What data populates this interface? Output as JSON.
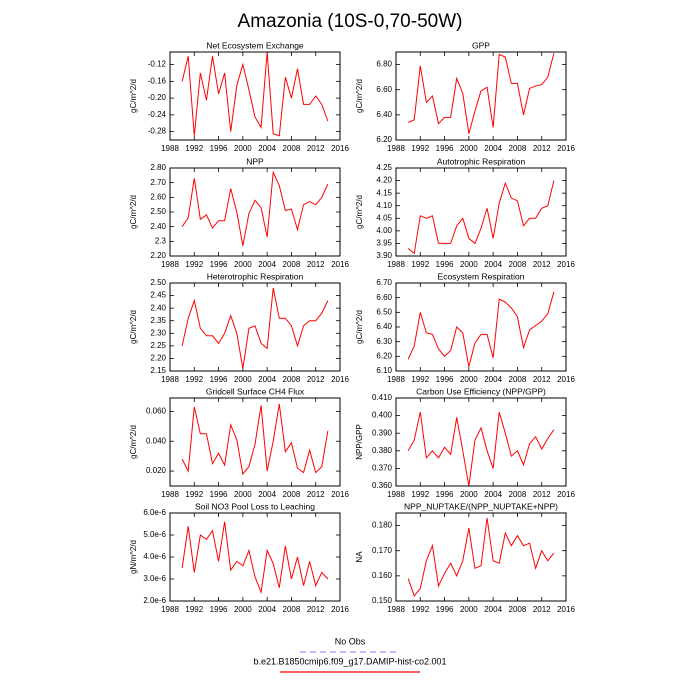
{
  "title": "Amazonia (10S-0,70-50W)",
  "legend": [
    {
      "name": "No Obs",
      "color": "#9999ff",
      "dash": true
    },
    {
      "name": "b.e21.B1850cmip6.f09_g17.DAMIP-hist-co2.001",
      "color": "#ff0000",
      "dash": false
    }
  ],
  "chart_data": [
    {
      "type": "line",
      "title": "Net Ecosystem Exchange",
      "ylabel": "gC/m^2/d",
      "color": "#ff0000",
      "x": [
        1990,
        1991,
        1992,
        1993,
        1994,
        1995,
        1996,
        1997,
        1998,
        1999,
        2000,
        2001,
        2002,
        2003,
        2004,
        2005,
        2006,
        2007,
        2008,
        2009,
        2010,
        2011,
        2012,
        2013,
        2014
      ],
      "values": [
        -0.16,
        -0.1,
        -0.29,
        -0.14,
        -0.205,
        -0.1,
        -0.19,
        -0.14,
        -0.28,
        -0.17,
        -0.12,
        -0.18,
        -0.245,
        -0.27,
        -0.09,
        -0.285,
        -0.29,
        -0.15,
        -0.2,
        -0.13,
        -0.215,
        -0.215,
        -0.195,
        -0.215,
        -0.255
      ],
      "xlim": [
        1988,
        2016
      ],
      "xticks": [
        1988,
        1992,
        1996,
        2000,
        2004,
        2008,
        2012,
        2016
      ],
      "ylim": [
        -0.3,
        -0.09
      ],
      "yticks": [
        -0.12,
        -0.16,
        {
          "value": -0.2,
          "label": "-0.20"
        },
        -0.24,
        -0.28
      ]
    },
    {
      "type": "line",
      "title": "GPP",
      "ylabel": "gC/m^2/d",
      "color": "#ff0000",
      "x": [
        1990,
        1991,
        1992,
        1993,
        1994,
        1995,
        1996,
        1997,
        1998,
        1999,
        2000,
        2001,
        2002,
        2003,
        2004,
        2005,
        2006,
        2007,
        2008,
        2009,
        2010,
        2011,
        2012,
        2013,
        2014
      ],
      "values": [
        6.34,
        6.36,
        6.79,
        6.5,
        6.55,
        6.33,
        6.38,
        6.38,
        6.69,
        6.57,
        6.25,
        6.43,
        6.59,
        6.62,
        6.3,
        6.88,
        6.86,
        6.65,
        6.65,
        6.4,
        6.61,
        6.63,
        6.64,
        6.7,
        6.89
      ],
      "xlim": [
        1988,
        2016
      ],
      "xticks": [
        1988,
        1992,
        1996,
        2000,
        2004,
        2008,
        2012,
        2016
      ],
      "ylim": [
        6.2,
        6.9
      ],
      "yticks": [
        {
          "value": 6.2,
          "label": "6.20"
        },
        {
          "value": 6.4,
          "label": "6.40"
        },
        {
          "value": 6.6,
          "label": "6.60"
        },
        {
          "value": 6.8,
          "label": "6.80"
        }
      ]
    },
    {
      "type": "line",
      "title": "NPP",
      "ylabel": "gC/m^2/d",
      "color": "#ff0000",
      "x": [
        1990,
        1991,
        1992,
        1993,
        1994,
        1995,
        1996,
        1997,
        1998,
        1999,
        2000,
        2001,
        2002,
        2003,
        2004,
        2005,
        2006,
        2007,
        2008,
        2009,
        2010,
        2011,
        2012,
        2013,
        2014
      ],
      "values": [
        2.4,
        2.46,
        2.73,
        2.45,
        2.48,
        2.39,
        2.44,
        2.44,
        2.66,
        2.5,
        2.27,
        2.49,
        2.58,
        2.53,
        2.33,
        2.77,
        2.68,
        2.51,
        2.52,
        2.38,
        2.55,
        2.57,
        2.55,
        2.6,
        2.69
      ],
      "xlim": [
        1988,
        2016
      ],
      "xticks": [
        1988,
        1992,
        1996,
        2000,
        2004,
        2008,
        2012,
        2016
      ],
      "ylim": [
        2.2,
        2.8
      ],
      "yticks": [
        {
          "value": 2.2,
          "label": "2.20"
        },
        2.3,
        {
          "value": 2.4,
          "label": "2.40"
        },
        {
          "value": 2.5,
          "label": "2.50"
        },
        {
          "value": 2.6,
          "label": "2.60"
        },
        {
          "value": 2.7,
          "label": "2.70"
        },
        {
          "value": 2.8,
          "label": "2.80"
        }
      ]
    },
    {
      "type": "line",
      "title": "Autotrophic Respiration",
      "ylabel": "gC/m^2/d",
      "color": "#ff0000",
      "x": [
        1990,
        1991,
        1992,
        1993,
        1994,
        1995,
        1996,
        1997,
        1998,
        1999,
        2000,
        2001,
        2002,
        2003,
        2004,
        2005,
        2006,
        2007,
        2008,
        2009,
        2010,
        2011,
        2012,
        2013,
        2014
      ],
      "values": [
        3.93,
        3.91,
        4.06,
        4.05,
        4.06,
        3.95,
        3.95,
        3.95,
        4.02,
        4.05,
        3.97,
        3.95,
        4.01,
        4.09,
        3.97,
        4.11,
        4.19,
        4.13,
        4.12,
        4.02,
        4.05,
        4.05,
        4.09,
        4.1,
        4.2
      ],
      "xlim": [
        1988,
        2016
      ],
      "xticks": [
        1988,
        1992,
        1996,
        2000,
        2004,
        2008,
        2012,
        2016
      ],
      "ylim": [
        3.9,
        4.25
      ],
      "yticks": [
        {
          "value": 3.9,
          "label": "3.90"
        },
        3.95,
        {
          "value": 4.0,
          "label": "4.00"
        },
        4.05,
        {
          "value": 4.1,
          "label": "4.10"
        },
        4.15,
        {
          "value": 4.2,
          "label": "4.20"
        },
        4.25
      ]
    },
    {
      "type": "line",
      "title": "Heterotrophic Respiration",
      "ylabel": "gC/m^2/d",
      "color": "#ff0000",
      "x": [
        1990,
        1991,
        1992,
        1993,
        1994,
        1995,
        1996,
        1997,
        1998,
        1999,
        2000,
        2001,
        2002,
        2003,
        2004,
        2005,
        2006,
        2007,
        2008,
        2009,
        2010,
        2011,
        2012,
        2013,
        2014
      ],
      "values": [
        2.25,
        2.36,
        2.43,
        2.32,
        2.29,
        2.29,
        2.26,
        2.3,
        2.37,
        2.3,
        2.16,
        2.32,
        2.33,
        2.26,
        2.24,
        2.48,
        2.36,
        2.36,
        2.33,
        2.25,
        2.33,
        2.35,
        2.35,
        2.38,
        2.43
      ],
      "xlim": [
        1988,
        2016
      ],
      "xticks": [
        1988,
        1992,
        1996,
        2000,
        2004,
        2008,
        2012,
        2016
      ],
      "ylim": [
        2.15,
        2.5
      ],
      "yticks": [
        2.15,
        {
          "value": 2.2,
          "label": "2.20"
        },
        2.25,
        {
          "value": 2.3,
          "label": "2.30"
        },
        2.35,
        {
          "value": 2.4,
          "label": "2.40"
        },
        2.45,
        {
          "value": 2.5,
          "label": "2.50"
        }
      ]
    },
    {
      "type": "line",
      "title": "Ecosystem Respiration",
      "ylabel": "gC/m^2/d",
      "color": "#ff0000",
      "x": [
        1990,
        1991,
        1992,
        1993,
        1994,
        1995,
        1996,
        1997,
        1998,
        1999,
        2000,
        2001,
        2002,
        2003,
        2004,
        2005,
        2006,
        2007,
        2008,
        2009,
        2010,
        2011,
        2012,
        2013,
        2014
      ],
      "values": [
        6.18,
        6.27,
        6.5,
        6.36,
        6.35,
        6.25,
        6.2,
        6.24,
        6.4,
        6.36,
        6.13,
        6.29,
        6.35,
        6.35,
        6.19,
        6.59,
        6.57,
        6.53,
        6.47,
        6.26,
        6.38,
        6.41,
        6.44,
        6.49,
        6.64
      ],
      "xlim": [
        1988,
        2016
      ],
      "xticks": [
        1988,
        1992,
        1996,
        2000,
        2004,
        2008,
        2012,
        2016
      ],
      "ylim": [
        6.1,
        6.7
      ],
      "yticks": [
        {
          "value": 6.1,
          "label": "6.10"
        },
        {
          "value": 6.2,
          "label": "6.20"
        },
        {
          "value": 6.3,
          "label": "6.30"
        },
        {
          "value": 6.4,
          "label": "6.40"
        },
        {
          "value": 6.5,
          "label": "6.50"
        },
        {
          "value": 6.6,
          "label": "6.60"
        },
        {
          "value": 6.7,
          "label": "6.70"
        }
      ]
    },
    {
      "type": "line",
      "title": "Gridcell Surface CH4 Flux",
      "ylabel": "gC/m^2/d",
      "color": "#ff0000",
      "x": [
        1990,
        1991,
        1992,
        1993,
        1994,
        1995,
        1996,
        1997,
        1998,
        1999,
        2000,
        2001,
        2002,
        2003,
        2004,
        2005,
        2006,
        2007,
        2008,
        2009,
        2010,
        2011,
        2012,
        2013,
        2014
      ],
      "values": [
        0.028,
        0.02,
        0.063,
        0.045,
        0.045,
        0.025,
        0.032,
        0.024,
        0.051,
        0.041,
        0.018,
        0.023,
        0.038,
        0.064,
        0.02,
        0.04,
        0.065,
        0.033,
        0.039,
        0.022,
        0.019,
        0.034,
        0.019,
        0.023,
        0.047
      ],
      "xlim": [
        1988,
        2016
      ],
      "xticks": [
        1988,
        1992,
        1996,
        2000,
        2004,
        2008,
        2012,
        2016
      ],
      "ylim": [
        0.01,
        0.069
      ],
      "yticks": [
        {
          "value": 0.02,
          "label": "0.020"
        },
        {
          "value": 0.04,
          "label": "0.040"
        },
        {
          "value": 0.06,
          "label": "0.060"
        }
      ]
    },
    {
      "type": "line",
      "title": "Carbon Use Efficiency (NPP/GPP)",
      "ylabel": "NPP/GPP",
      "color": "#ff0000",
      "x": [
        1990,
        1991,
        1992,
        1993,
        1994,
        1995,
        1996,
        1997,
        1998,
        1999,
        2000,
        2001,
        2002,
        2003,
        2004,
        2005,
        2006,
        2007,
        2008,
        2009,
        2010,
        2011,
        2012,
        2013,
        2014
      ],
      "values": [
        0.38,
        0.386,
        0.402,
        0.376,
        0.38,
        0.376,
        0.382,
        0.378,
        0.399,
        0.38,
        0.36,
        0.386,
        0.393,
        0.38,
        0.37,
        0.402,
        0.39,
        0.377,
        0.38,
        0.372,
        0.384,
        0.388,
        0.381,
        0.387,
        0.392
      ],
      "xlim": [
        1988,
        2016
      ],
      "xticks": [
        1988,
        1992,
        1996,
        2000,
        2004,
        2008,
        2012,
        2016
      ],
      "ylim": [
        0.36,
        0.41
      ],
      "yticks": [
        {
          "value": 0.36,
          "label": "0.360"
        },
        {
          "value": 0.37,
          "label": "0.370"
        },
        {
          "value": 0.38,
          "label": "0.380"
        },
        {
          "value": 0.39,
          "label": "0.390"
        },
        {
          "value": 0.4,
          "label": "0.400"
        },
        {
          "value": 0.41,
          "label": "0.410"
        }
      ]
    },
    {
      "type": "line",
      "title": "Soil NO3 Pool Loss to Leaching",
      "ylabel": "gN/m^2/d",
      "color": "#ff0000",
      "x": [
        1990,
        1991,
        1992,
        1993,
        1994,
        1995,
        1996,
        1997,
        1998,
        1999,
        2000,
        2001,
        2002,
        2003,
        2004,
        2005,
        2006,
        2007,
        2008,
        2009,
        2010,
        2011,
        2012,
        2013,
        2014
      ],
      "values": [
        3.5e-06,
        5.4e-06,
        3.3e-06,
        5e-06,
        4.8e-06,
        5.2e-06,
        3.8e-06,
        5.6e-06,
        3.4e-06,
        3.8e-06,
        3.6e-06,
        4.3e-06,
        3.1e-06,
        2.4e-06,
        4.3e-06,
        3.7e-06,
        2.6e-06,
        4.5e-06,
        3e-06,
        4e-06,
        2.7e-06,
        3.8e-06,
        2.7e-06,
        3.3e-06,
        3e-06
      ],
      "xlim": [
        1988,
        2016
      ],
      "xticks": [
        1988,
        1992,
        1996,
        2000,
        2004,
        2008,
        2012,
        2016
      ],
      "ylim": [
        2e-06,
        6e-06
      ],
      "yticks": [
        {
          "value": 2e-06,
          "label": "2.0e-6"
        },
        {
          "value": 3e-06,
          "label": "3.0e-6"
        },
        {
          "value": 4e-06,
          "label": "4.0e-6"
        },
        {
          "value": 5e-06,
          "label": "5.0e-6"
        },
        {
          "value": 6e-06,
          "label": "6.0e-6"
        }
      ]
    },
    {
      "type": "line",
      "title": "NPP_NUPTAKE/(NPP_NUPTAKE+NPP)",
      "ylabel": "NA",
      "color": "#ff0000",
      "x": [
        1990,
        1991,
        1992,
        1993,
        1994,
        1995,
        1996,
        1997,
        1998,
        1999,
        2000,
        2001,
        2002,
        2003,
        2004,
        2005,
        2006,
        2007,
        2008,
        2009,
        2010,
        2011,
        2012,
        2013,
        2014
      ],
      "values": [
        0.159,
        0.152,
        0.155,
        0.166,
        0.172,
        0.156,
        0.161,
        0.165,
        0.16,
        0.166,
        0.179,
        0.163,
        0.164,
        0.183,
        0.166,
        0.165,
        0.177,
        0.172,
        0.176,
        0.172,
        0.173,
        0.163,
        0.17,
        0.166,
        0.169
      ],
      "xlim": [
        1988,
        2016
      ],
      "xticks": [
        1988,
        1992,
        1996,
        2000,
        2004,
        2008,
        2012,
        2016
      ],
      "ylim": [
        0.15,
        0.185
      ],
      "yticks": [
        {
          "value": 0.15,
          "label": "0.150"
        },
        {
          "value": 0.16,
          "label": "0.160"
        },
        {
          "value": 0.17,
          "label": "0.170"
        },
        {
          "value": 0.18,
          "label": "0.180"
        }
      ]
    }
  ]
}
